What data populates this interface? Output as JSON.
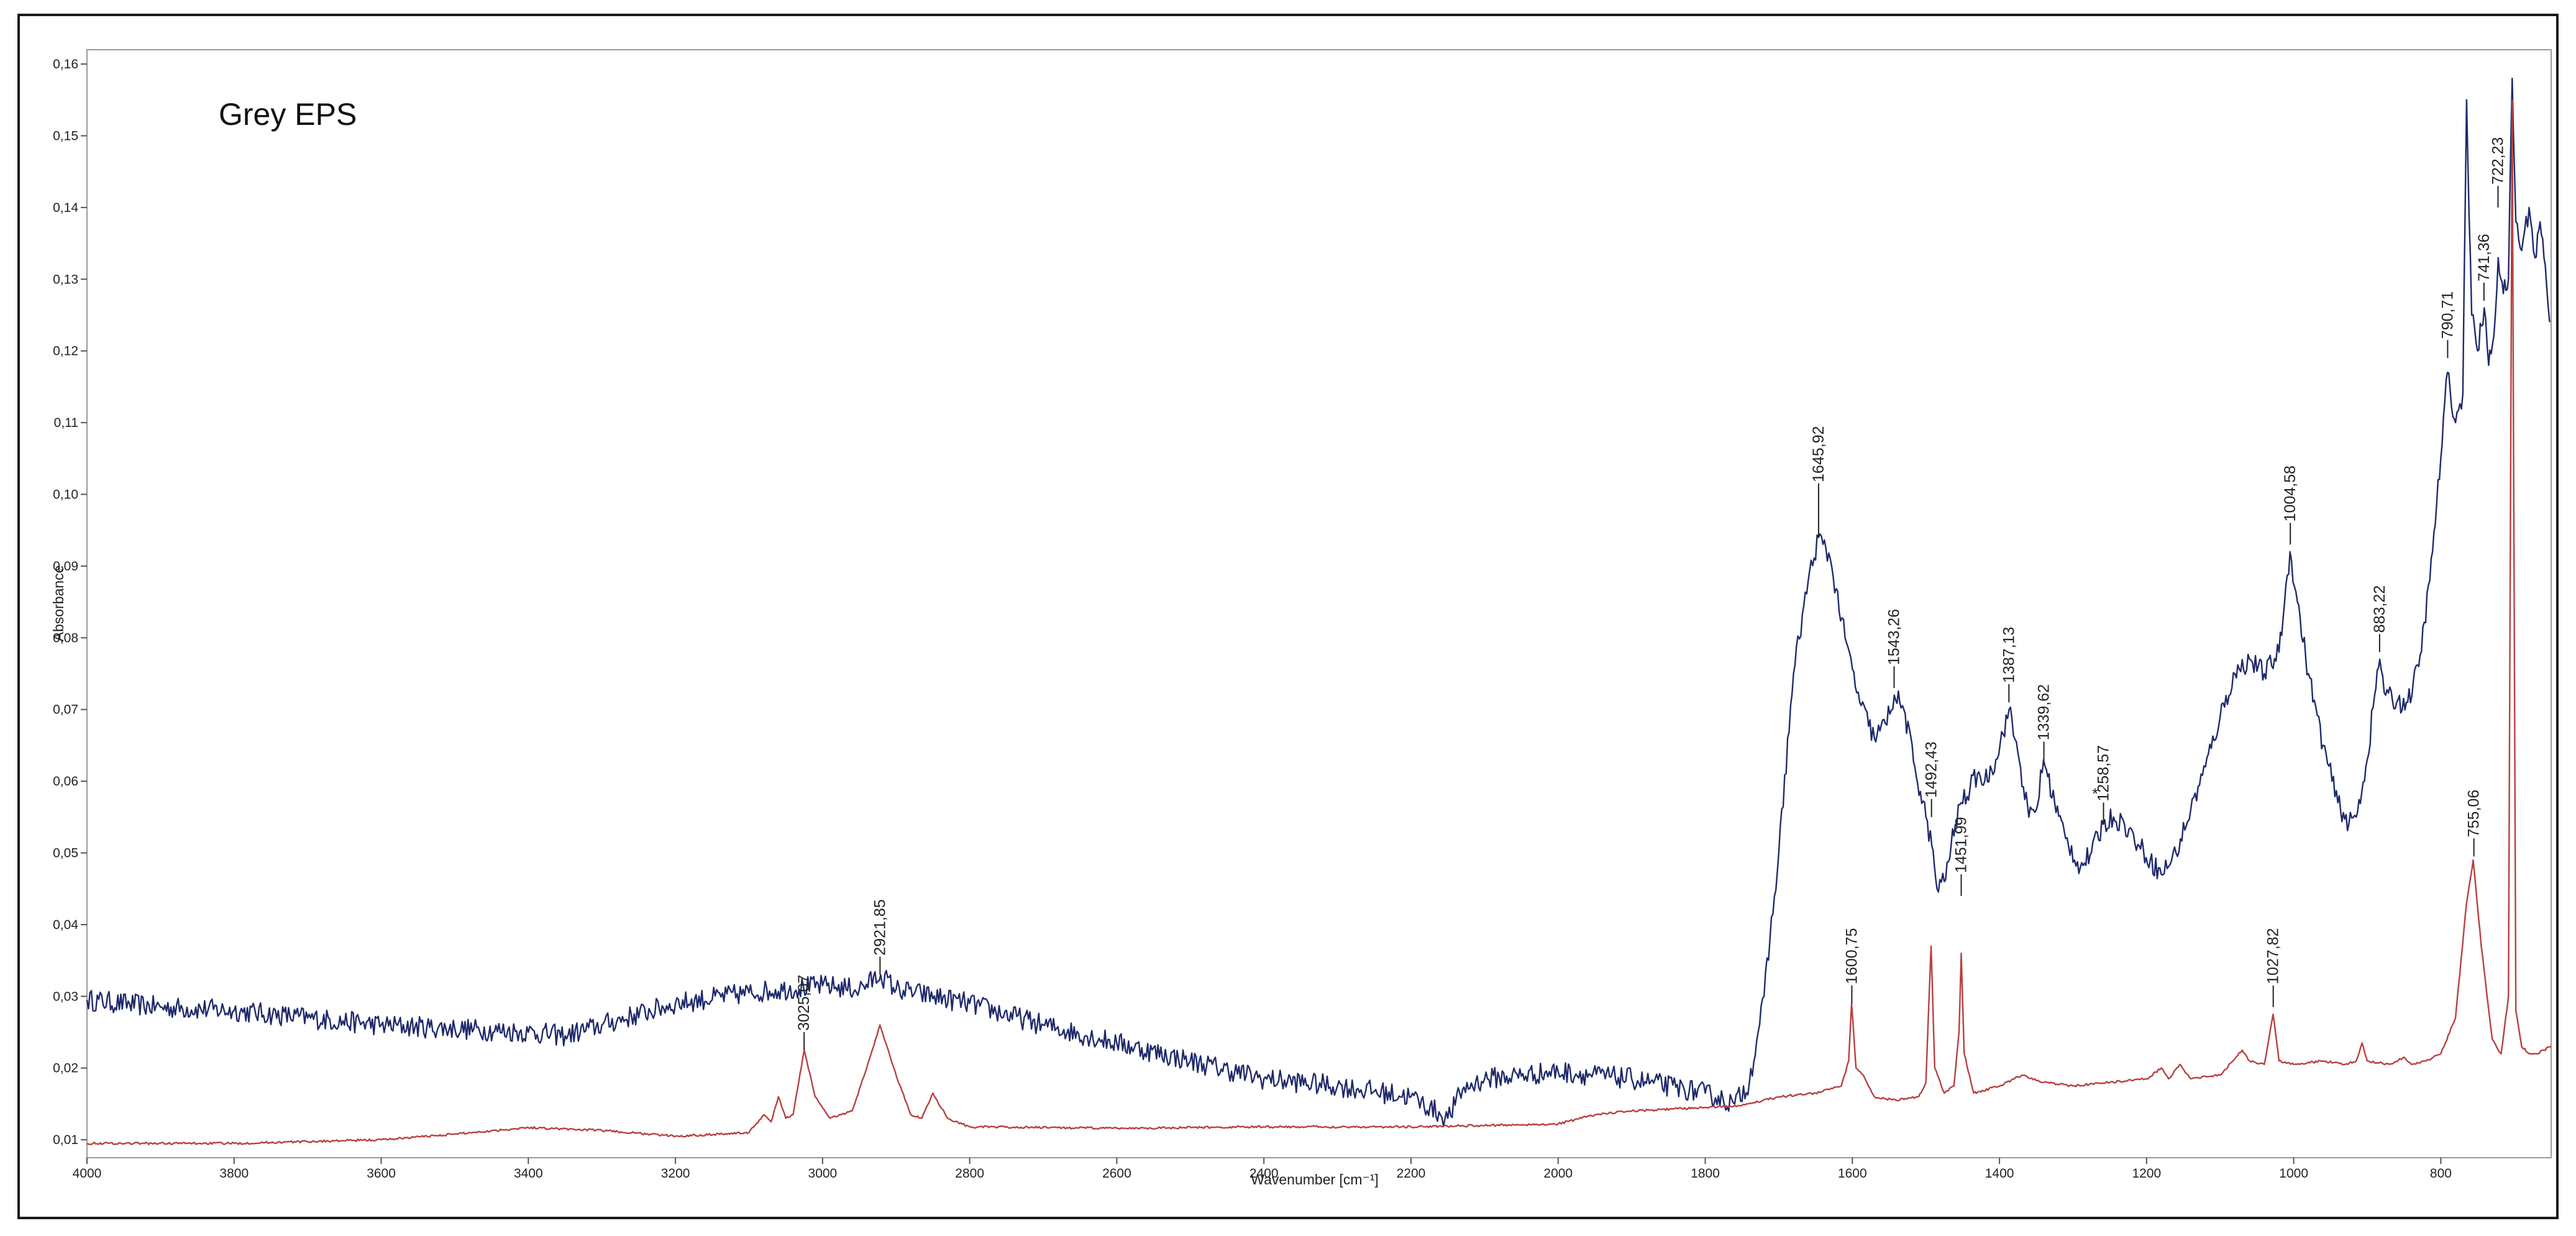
{
  "chart_data": {
    "type": "line",
    "title": "Grey EPS",
    "xlabel": "Wavenumber [cm⁻¹]",
    "ylabel": "Absorbance",
    "xlim": [
      4000,
      650
    ],
    "ylim": [
      0.0075,
      0.162
    ],
    "x_reversed": true,
    "grid": false,
    "x_ticks": [
      {
        "v": 4000,
        "label": "4000"
      },
      {
        "v": 3800,
        "label": "3800"
      },
      {
        "v": 3600,
        "label": "3600"
      },
      {
        "v": 3400,
        "label": "3400"
      },
      {
        "v": 3200,
        "label": "3200"
      },
      {
        "v": 3000,
        "label": "3000"
      },
      {
        "v": 2800,
        "label": "2800"
      },
      {
        "v": 2600,
        "label": "2600"
      },
      {
        "v": 2400,
        "label": "2400"
      },
      {
        "v": 2200,
        "label": "2200"
      },
      {
        "v": 2000,
        "label": "2000"
      },
      {
        "v": 1800,
        "label": "1800"
      },
      {
        "v": 1600,
        "label": "1600"
      },
      {
        "v": 1400,
        "label": "1400"
      },
      {
        "v": 1200,
        "label": "1200"
      },
      {
        "v": 1000,
        "label": "1000"
      },
      {
        "v": 800,
        "label": "800"
      }
    ],
    "y_ticks": [
      {
        "v": 0.01,
        "label": "0,01"
      },
      {
        "v": 0.02,
        "label": "0,02"
      },
      {
        "v": 0.03,
        "label": "0,03"
      },
      {
        "v": 0.04,
        "label": "0,04"
      },
      {
        "v": 0.05,
        "label": "0,05"
      },
      {
        "v": 0.06,
        "label": "0,06"
      },
      {
        "v": 0.07,
        "label": "0,07"
      },
      {
        "v": 0.08,
        "label": "0,08"
      },
      {
        "v": 0.09,
        "label": "0,09"
      },
      {
        "v": 0.1,
        "label": "0,10"
      },
      {
        "v": 0.11,
        "label": "0,11"
      },
      {
        "v": 0.12,
        "label": "0,12"
      },
      {
        "v": 0.13,
        "label": "0,13"
      },
      {
        "v": 0.14,
        "label": "0,14"
      },
      {
        "v": 0.15,
        "label": "0,15"
      },
      {
        "v": 0.16,
        "label": "0,16"
      }
    ],
    "series": [
      {
        "color": "#1f2a6b",
        "noise": 0.0015,
        "points": [
          [
            4000,
            0.0295
          ],
          [
            3900,
            0.0285
          ],
          [
            3800,
            0.028
          ],
          [
            3700,
            0.027
          ],
          [
            3600,
            0.026
          ],
          [
            3500,
            0.0255
          ],
          [
            3400,
            0.025
          ],
          [
            3350,
            0.0245
          ],
          [
            3300,
            0.026
          ],
          [
            3200,
            0.029
          ],
          [
            3100,
            0.0305
          ],
          [
            3000,
            0.0315
          ],
          [
            2950,
            0.031
          ],
          [
            2921,
            0.033
          ],
          [
            2900,
            0.031
          ],
          [
            2800,
            0.029
          ],
          [
            2700,
            0.026
          ],
          [
            2600,
            0.0235
          ],
          [
            2500,
            0.021
          ],
          [
            2400,
            0.0185
          ],
          [
            2300,
            0.0175
          ],
          [
            2200,
            0.016
          ],
          [
            2150,
            0.013
          ],
          [
            2130,
            0.017
          ],
          [
            2100,
            0.0185
          ],
          [
            2000,
            0.0195
          ],
          [
            1900,
            0.0185
          ],
          [
            1800,
            0.0165
          ],
          [
            1760,
            0.015
          ],
          [
            1740,
            0.018
          ],
          [
            1720,
            0.03
          ],
          [
            1700,
            0.05
          ],
          [
            1680,
            0.075
          ],
          [
            1660,
            0.088
          ],
          [
            1646,
            0.094
          ],
          [
            1630,
            0.091
          ],
          [
            1610,
            0.08
          ],
          [
            1590,
            0.071
          ],
          [
            1570,
            0.066
          ],
          [
            1555,
            0.068
          ],
          [
            1543,
            0.072
          ],
          [
            1530,
            0.07
          ],
          [
            1515,
            0.062
          ],
          [
            1500,
            0.055
          ],
          [
            1492,
            0.051
          ],
          [
            1485,
            0.045
          ],
          [
            1475,
            0.046
          ],
          [
            1460,
            0.054
          ],
          [
            1452,
            0.057
          ],
          [
            1440,
            0.059
          ],
          [
            1430,
            0.061
          ],
          [
            1420,
            0.06
          ],
          [
            1405,
            0.063
          ],
          [
            1387,
            0.07
          ],
          [
            1375,
            0.064
          ],
          [
            1360,
            0.055
          ],
          [
            1350,
            0.056
          ],
          [
            1340,
            0.063
          ],
          [
            1325,
            0.057
          ],
          [
            1310,
            0.052
          ],
          [
            1290,
            0.048
          ],
          [
            1275,
            0.05
          ],
          [
            1259,
            0.054
          ],
          [
            1245,
            0.055
          ],
          [
            1230,
            0.054
          ],
          [
            1210,
            0.051
          ],
          [
            1195,
            0.049
          ],
          [
            1180,
            0.047
          ],
          [
            1160,
            0.05
          ],
          [
            1140,
            0.056
          ],
          [
            1120,
            0.062
          ],
          [
            1100,
            0.069
          ],
          [
            1080,
            0.075
          ],
          [
            1060,
            0.077
          ],
          [
            1040,
            0.075
          ],
          [
            1020,
            0.078
          ],
          [
            1005,
            0.092
          ],
          [
            995,
            0.085
          ],
          [
            980,
            0.075
          ],
          [
            960,
            0.065
          ],
          [
            940,
            0.057
          ],
          [
            925,
            0.054
          ],
          [
            915,
            0.055
          ],
          [
            900,
            0.063
          ],
          [
            890,
            0.072
          ],
          [
            883,
            0.077
          ],
          [
            875,
            0.072
          ],
          [
            860,
            0.071
          ],
          [
            845,
            0.071
          ],
          [
            830,
            0.076
          ],
          [
            815,
            0.088
          ],
          [
            800,
            0.105
          ],
          [
            791,
            0.117
          ],
          [
            780,
            0.11
          ],
          [
            770,
            0.114
          ],
          [
            765,
            0.155
          ],
          [
            758,
            0.125
          ],
          [
            750,
            0.12
          ],
          [
            741,
            0.126
          ],
          [
            735,
            0.118
          ],
          [
            728,
            0.122
          ],
          [
            722,
            0.133
          ],
          [
            715,
            0.128
          ],
          [
            708,
            0.13
          ],
          [
            703,
            0.158
          ],
          [
            698,
            0.138
          ],
          [
            690,
            0.134
          ],
          [
            680,
            0.14
          ],
          [
            672,
            0.133
          ],
          [
            665,
            0.138
          ],
          [
            658,
            0.132
          ],
          [
            652,
            0.124
          ]
        ]
      },
      {
        "color": "#b84040",
        "noise": 0.00015,
        "points": [
          [
            4000,
            0.0095
          ],
          [
            3800,
            0.0095
          ],
          [
            3600,
            0.01
          ],
          [
            3500,
            0.0108
          ],
          [
            3400,
            0.0117
          ],
          [
            3300,
            0.0113
          ],
          [
            3200,
            0.0105
          ],
          [
            3100,
            0.011
          ],
          [
            3080,
            0.0135
          ],
          [
            3070,
            0.0125
          ],
          [
            3060,
            0.016
          ],
          [
            3050,
            0.013
          ],
          [
            3040,
            0.0135
          ],
          [
            3025,
            0.0225
          ],
          [
            3010,
            0.016
          ],
          [
            2990,
            0.013
          ],
          [
            2960,
            0.014
          ],
          [
            2940,
            0.02
          ],
          [
            2922,
            0.026
          ],
          [
            2900,
            0.019
          ],
          [
            2880,
            0.0135
          ],
          [
            2865,
            0.013
          ],
          [
            2850,
            0.0165
          ],
          [
            2830,
            0.013
          ],
          [
            2800,
            0.0118
          ],
          [
            2600,
            0.0116
          ],
          [
            2400,
            0.0118
          ],
          [
            2200,
            0.0118
          ],
          [
            2000,
            0.0122
          ],
          [
            1950,
            0.0135
          ],
          [
            1900,
            0.014
          ],
          [
            1800,
            0.0145
          ],
          [
            1750,
            0.0148
          ],
          [
            1700,
            0.016
          ],
          [
            1650,
            0.0165
          ],
          [
            1615,
            0.0175
          ],
          [
            1605,
            0.021
          ],
          [
            1601,
            0.029
          ],
          [
            1595,
            0.02
          ],
          [
            1585,
            0.019
          ],
          [
            1570,
            0.016
          ],
          [
            1540,
            0.0155
          ],
          [
            1510,
            0.016
          ],
          [
            1500,
            0.018
          ],
          [
            1493,
            0.037
          ],
          [
            1488,
            0.02
          ],
          [
            1475,
            0.0165
          ],
          [
            1462,
            0.0175
          ],
          [
            1455,
            0.025
          ],
          [
            1452,
            0.036
          ],
          [
            1448,
            0.022
          ],
          [
            1435,
            0.0165
          ],
          [
            1400,
            0.0175
          ],
          [
            1370,
            0.019
          ],
          [
            1340,
            0.018
          ],
          [
            1300,
            0.0175
          ],
          [
            1250,
            0.018
          ],
          [
            1200,
            0.0185
          ],
          [
            1180,
            0.02
          ],
          [
            1170,
            0.0185
          ],
          [
            1155,
            0.0205
          ],
          [
            1140,
            0.0185
          ],
          [
            1100,
            0.019
          ],
          [
            1070,
            0.0225
          ],
          [
            1060,
            0.021
          ],
          [
            1040,
            0.0205
          ],
          [
            1028,
            0.0275
          ],
          [
            1020,
            0.021
          ],
          [
            1000,
            0.0205
          ],
          [
            960,
            0.021
          ],
          [
            930,
            0.0205
          ],
          [
            915,
            0.021
          ],
          [
            907,
            0.0235
          ],
          [
            900,
            0.021
          ],
          [
            870,
            0.0205
          ],
          [
            850,
            0.0215
          ],
          [
            840,
            0.0205
          ],
          [
            820,
            0.021
          ],
          [
            800,
            0.022
          ],
          [
            780,
            0.027
          ],
          [
            765,
            0.043
          ],
          [
            756,
            0.049
          ],
          [
            745,
            0.037
          ],
          [
            730,
            0.024
          ],
          [
            718,
            0.022
          ],
          [
            708,
            0.03
          ],
          [
            703,
            0.155
          ],
          [
            698,
            0.028
          ],
          [
            690,
            0.023
          ],
          [
            680,
            0.022
          ],
          [
            670,
            0.022
          ],
          [
            660,
            0.0225
          ],
          [
            650,
            0.023
          ]
        ]
      }
    ],
    "annotations": [
      {
        "x": 3025.07,
        "text": "3025,07",
        "y_line": 0.0225,
        "y_text": 0.0245
      },
      {
        "x": 2921.85,
        "text": "2921,85",
        "y_line": 0.033,
        "y_text": 0.035
      },
      {
        "x": 1645.92,
        "text": "1645,92",
        "y_line": 0.094,
        "y_text": 0.101
      },
      {
        "x": 1600.75,
        "text": "1600,75",
        "y_line": 0.029,
        "y_text": 0.031
      },
      {
        "x": 1543.26,
        "text": "1543,26",
        "y_line": 0.073,
        "y_text": 0.0755
      },
      {
        "x": 1492.43,
        "text": "1492,43",
        "y_line": 0.055,
        "y_text": 0.057
      },
      {
        "x": 1451.99,
        "text": "1451,99",
        "y_line": 0.044,
        "y_text": 0.0465
      },
      {
        "x": 1387.13,
        "text": "1387,13",
        "y_line": 0.071,
        "y_text": 0.073
      },
      {
        "x": 1339.62,
        "text": "1339,62",
        "y_line": 0.063,
        "y_text": 0.065
      },
      {
        "x": 1258.57,
        "text": "1258,57",
        "y_line": 0.054,
        "y_text": 0.0565
      },
      {
        "x": 1027.82,
        "text": "1027,82",
        "y_line": 0.0285,
        "y_text": 0.031
      },
      {
        "x": 1004.58,
        "text": "1004,58",
        "y_line": 0.093,
        "y_text": 0.0955
      },
      {
        "x": 883.22,
        "text": "883,22",
        "y_line": 0.078,
        "y_text": 0.08
      },
      {
        "x": 790.71,
        "text": "790,71",
        "y_line": 0.119,
        "y_text": 0.121
      },
      {
        "x": 755.06,
        "text": "755,06",
        "y_line": 0.0495,
        "y_text": 0.0515
      },
      {
        "x": 741.36,
        "text": "741,36",
        "y_line": 0.127,
        "y_text": 0.129
      },
      {
        "x": 722.23,
        "text": "722,23",
        "y_line": 0.14,
        "y_text": 0.1425
      }
    ],
    "asterisk": {
      "x": 1270,
      "y": 0.0575,
      "text": "*"
    }
  }
}
